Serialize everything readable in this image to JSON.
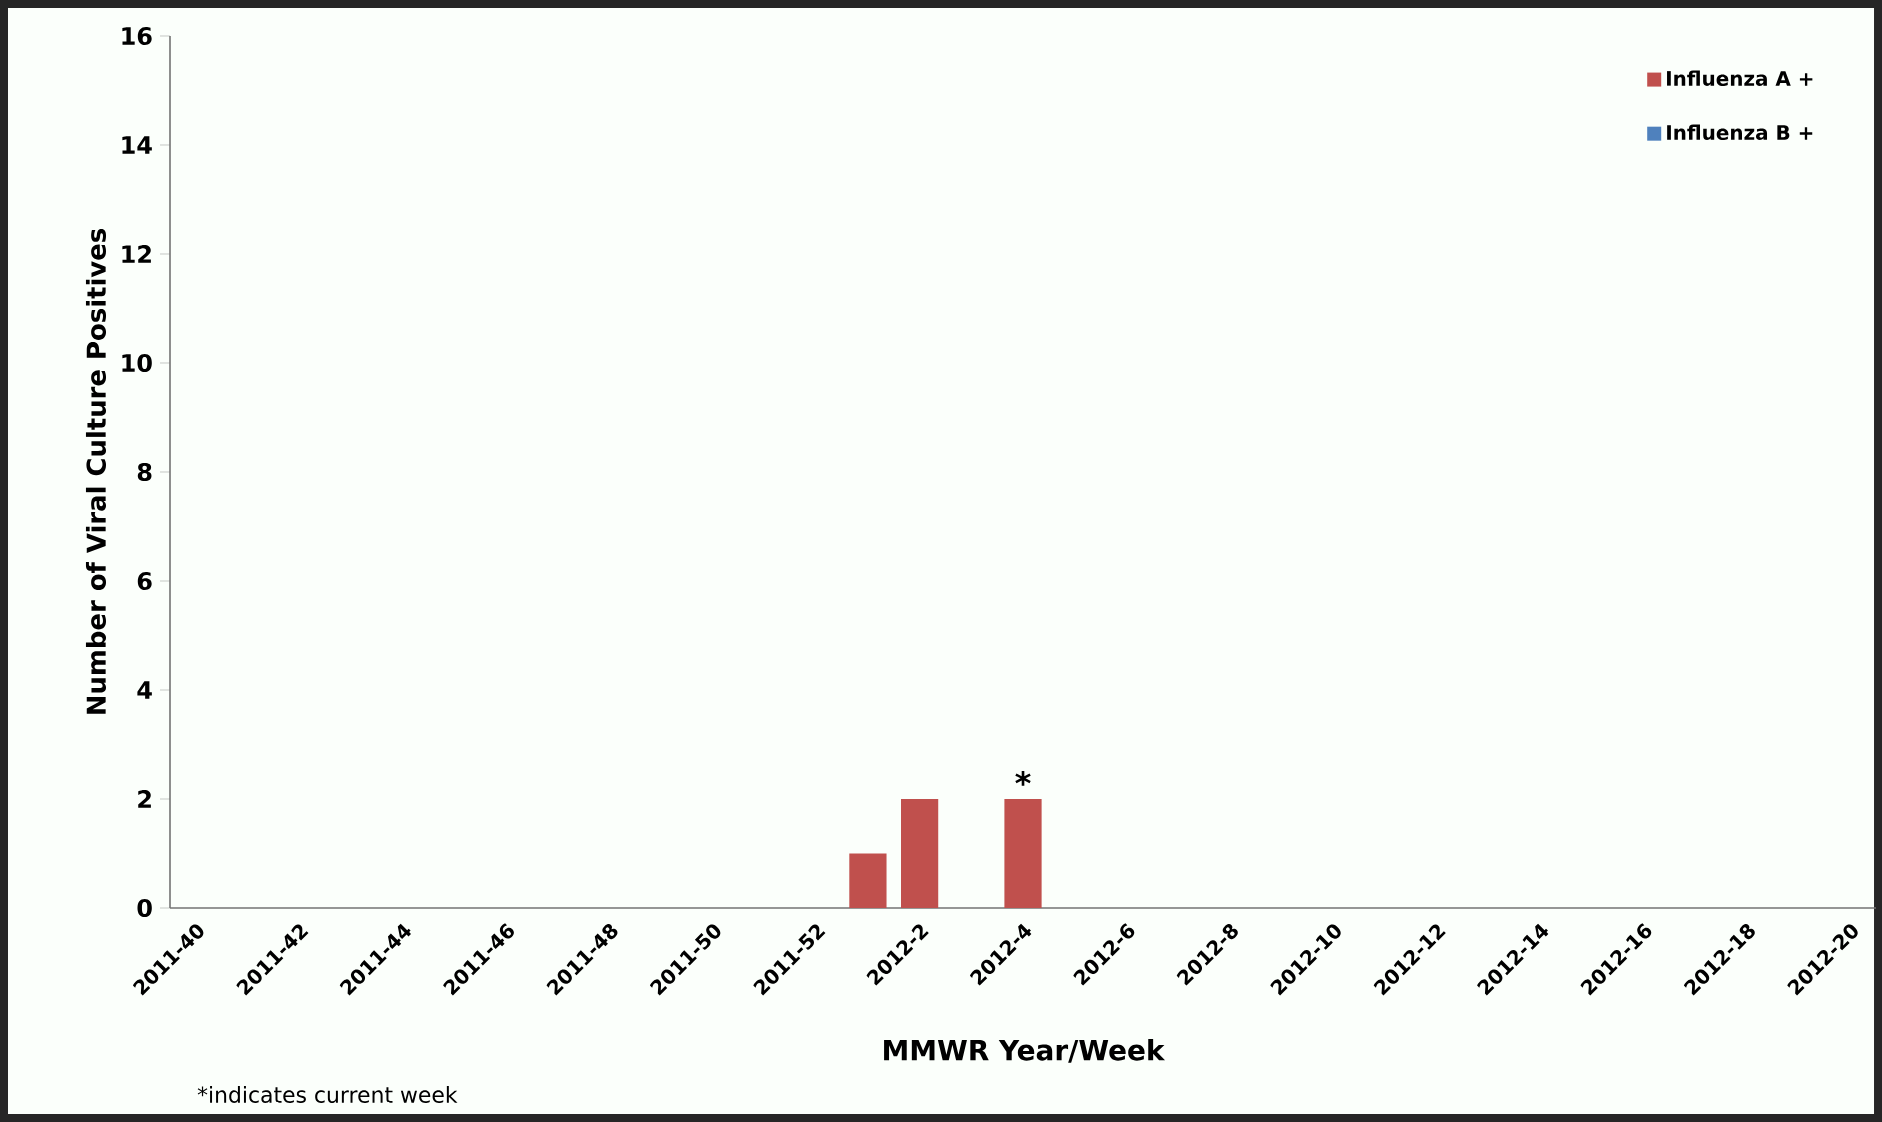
{
  "chart_data": {
    "type": "bar",
    "stacked": true,
    "xlabel": "MMWR Year/Week",
    "ylabel": "Number of Viral Culture Positives",
    "categories": [
      "2011-40",
      null,
      "2011-42",
      null,
      "2011-44",
      null,
      "2011-46",
      null,
      "2011-48",
      null,
      "2011-50",
      null,
      "2011-52",
      null,
      "2012-2",
      null,
      "2012-4",
      null,
      "2012-6",
      null,
      "2012-8",
      null,
      "2012-10",
      null,
      "2012-12",
      null,
      "2012-14",
      null,
      "2012-16",
      null,
      "2012-18",
      null,
      "2012-20"
    ],
    "series": [
      {
        "name": "Influenza A +",
        "color": "#c0504d",
        "values": [
          0,
          0,
          0,
          0,
          0,
          0,
          0,
          0,
          0,
          0,
          0,
          0,
          0,
          1,
          2,
          0,
          2,
          0,
          0,
          0,
          0,
          0,
          0,
          0,
          0,
          0,
          0,
          0,
          0,
          0,
          0,
          0,
          0
        ]
      },
      {
        "name": "Influenza B +",
        "color": "#4f81bd",
        "values": [
          0,
          0,
          0,
          0,
          0,
          0,
          0,
          0,
          0,
          0,
          0,
          0,
          0,
          0,
          0,
          0,
          0,
          0,
          0,
          0,
          0,
          0,
          0,
          0,
          0,
          0,
          0,
          0,
          0,
          0,
          0,
          0,
          0
        ]
      }
    ],
    "ylim": [
      0,
      16
    ],
    "yticks": [
      0,
      2,
      4,
      6,
      8,
      10,
      12,
      14,
      16
    ],
    "grid": false,
    "legend": "top right",
    "annotations": [
      {
        "text": "*",
        "x": "2012-4",
        "y": 2
      },
      "*indicates current week"
    ]
  }
}
